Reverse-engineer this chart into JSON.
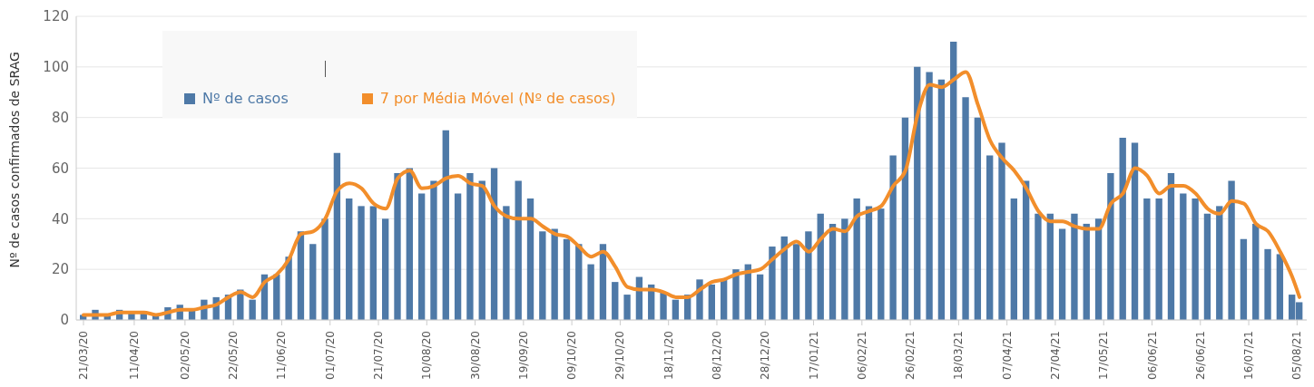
{
  "chart_data": {
    "type": "bar",
    "ylabel": "Nº de casos confirmados de SRAG",
    "x": [
      "2020-03-21",
      "2020-03-26",
      "2020-03-31",
      "2020-04-05",
      "2020-04-10",
      "2020-04-15",
      "2020-04-20",
      "2020-04-25",
      "2020-04-30",
      "2020-05-05",
      "2020-05-10",
      "2020-05-15",
      "2020-05-20",
      "2020-05-25",
      "2020-05-30",
      "2020-06-04",
      "2020-06-09",
      "2020-06-14",
      "2020-06-19",
      "2020-06-24",
      "2020-06-29",
      "2020-07-04",
      "2020-07-09",
      "2020-07-14",
      "2020-07-19",
      "2020-07-24",
      "2020-07-29",
      "2020-08-03",
      "2020-08-08",
      "2020-08-13",
      "2020-08-18",
      "2020-08-23",
      "2020-08-28",
      "2020-09-02",
      "2020-09-07",
      "2020-09-12",
      "2020-09-17",
      "2020-09-22",
      "2020-09-27",
      "2020-10-02",
      "2020-10-07",
      "2020-10-12",
      "2020-10-17",
      "2020-10-22",
      "2020-10-27",
      "2020-11-01",
      "2020-11-06",
      "2020-11-11",
      "2020-11-16",
      "2020-11-21",
      "2020-11-26",
      "2020-12-01",
      "2020-12-06",
      "2020-12-11",
      "2020-12-16",
      "2020-12-21",
      "2020-12-26",
      "2020-12-31",
      "2021-01-05",
      "2021-01-10",
      "2021-01-15",
      "2021-01-20",
      "2021-01-25",
      "2021-01-30",
      "2021-02-04",
      "2021-02-09",
      "2021-02-14",
      "2021-02-19",
      "2021-02-24",
      "2021-03-01",
      "2021-03-06",
      "2021-03-11",
      "2021-03-16",
      "2021-03-21",
      "2021-03-26",
      "2021-03-31",
      "2021-04-05",
      "2021-04-10",
      "2021-04-15",
      "2021-04-20",
      "2021-04-25",
      "2021-04-30",
      "2021-05-05",
      "2021-05-10",
      "2021-05-15",
      "2021-05-20",
      "2021-05-25",
      "2021-05-30",
      "2021-06-04",
      "2021-06-09",
      "2021-06-14",
      "2021-06-19",
      "2021-06-24",
      "2021-06-29",
      "2021-07-04",
      "2021-07-09",
      "2021-07-14",
      "2021-07-19",
      "2021-07-24",
      "2021-07-29",
      "2021-08-03",
      "2021-08-06"
    ],
    "series": [
      {
        "name": "Nº de casos",
        "color": "#4e79a7",
        "values": [
          2,
          4,
          2,
          4,
          3,
          3,
          2,
          5,
          6,
          4,
          8,
          9,
          10,
          12,
          8,
          18,
          18,
          25,
          35,
          30,
          40,
          66,
          48,
          45,
          45,
          40,
          58,
          60,
          50,
          55,
          75,
          50,
          58,
          55,
          60,
          45,
          55,
          48,
          35,
          36,
          32,
          30,
          22,
          30,
          15,
          10,
          17,
          14,
          11,
          8,
          10,
          16,
          14,
          16,
          20,
          22,
          18,
          29,
          33,
          30,
          35,
          42,
          38,
          40,
          48,
          45,
          44,
          65,
          80,
          100,
          98,
          95,
          110,
          88,
          80,
          65,
          70,
          48,
          55,
          42,
          42,
          36,
          42,
          38,
          40,
          58,
          72,
          70,
          48,
          48,
          58,
          50,
          48,
          42,
          45,
          55,
          32,
          38,
          28,
          26,
          10,
          7
        ]
      },
      {
        "name": "7 por Média Móvel (Nº de casos)",
        "type": "line",
        "color": "#f28e2b",
        "values": [
          2,
          2,
          2,
          3,
          3,
          3,
          2,
          3,
          4,
          4,
          5,
          6,
          9,
          11,
          9,
          15,
          18,
          24,
          34,
          35,
          40,
          51,
          54,
          52,
          46,
          44,
          56,
          59,
          52,
          53,
          56,
          57,
          54,
          53,
          45,
          41,
          40,
          40,
          37,
          34,
          33,
          29,
          25,
          27,
          21,
          13,
          12,
          12,
          11,
          9,
          9,
          12,
          15,
          16,
          18,
          19,
          20,
          24,
          28,
          31,
          27,
          32,
          36,
          35,
          41,
          43,
          45,
          53,
          59,
          81,
          93,
          92,
          95,
          98,
          85,
          71,
          64,
          59,
          52,
          43,
          39,
          39,
          37,
          36,
          36,
          46,
          50,
          60,
          57,
          50,
          53,
          53,
          50,
          44,
          42,
          47,
          46,
          38,
          35,
          27,
          17,
          9
        ]
      }
    ],
    "xlim": [
      "2020-03-18",
      "2021-08-09"
    ],
    "xticks": [
      {
        "value": "2020-03-21",
        "label": "21/03/20"
      },
      {
        "value": "2020-04-11",
        "label": "11/04/20"
      },
      {
        "value": "2020-05-02",
        "label": "02/05/20"
      },
      {
        "value": "2020-05-22",
        "label": "22/05/20"
      },
      {
        "value": "2020-06-11",
        "label": "11/06/20"
      },
      {
        "value": "2020-07-01",
        "label": "01/07/20"
      },
      {
        "value": "2020-07-21",
        "label": "21/07/20"
      },
      {
        "value": "2020-08-10",
        "label": "10/08/20"
      },
      {
        "value": "2020-08-30",
        "label": "30/08/20"
      },
      {
        "value": "2020-09-19",
        "label": "19/09/20"
      },
      {
        "value": "2020-10-09",
        "label": "09/10/20"
      },
      {
        "value": "2020-10-29",
        "label": "29/10/20"
      },
      {
        "value": "2020-11-18",
        "label": "18/11/20"
      },
      {
        "value": "2020-12-08",
        "label": "08/12/20"
      },
      {
        "value": "2020-12-28",
        "label": "28/12/20"
      },
      {
        "value": "2021-01-17",
        "label": "17/01/21"
      },
      {
        "value": "2021-02-06",
        "label": "06/02/21"
      },
      {
        "value": "2021-02-26",
        "label": "26/02/21"
      },
      {
        "value": "2021-03-18",
        "label": "18/03/21"
      },
      {
        "value": "2021-04-07",
        "label": "07/04/21"
      },
      {
        "value": "2021-04-27",
        "label": "27/04/21"
      },
      {
        "value": "2021-05-17",
        "label": "17/05/21"
      },
      {
        "value": "2021-06-06",
        "label": "06/06/21"
      },
      {
        "value": "2021-06-26",
        "label": "26/06/21"
      },
      {
        "value": "2021-07-16",
        "label": "16/07/21"
      },
      {
        "value": "2021-08-05",
        "label": "05/08/21"
      }
    ],
    "ylim": [
      0,
      120
    ],
    "yticks": [
      0,
      20,
      40,
      60,
      80,
      100,
      120
    ],
    "grid": "y",
    "legend": "top left"
  }
}
